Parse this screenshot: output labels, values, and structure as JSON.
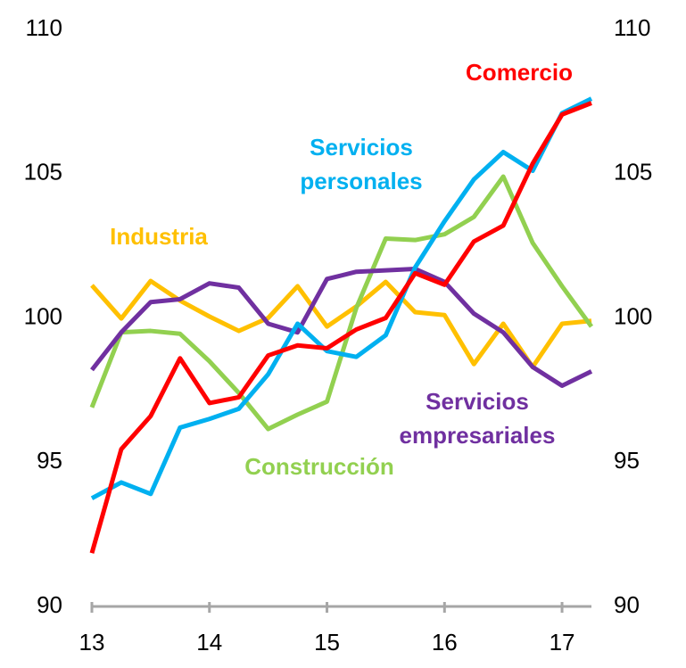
{
  "chart_data": {
    "type": "line",
    "x": [
      13,
      13.25,
      13.5,
      13.75,
      14,
      14.25,
      14.5,
      14.75,
      15,
      15.25,
      15.5,
      15.75,
      16,
      16.25,
      16.5,
      16.75,
      17,
      17.25
    ],
    "xlim": [
      13,
      17.25
    ],
    "xticks": [
      13,
      14,
      15,
      16,
      17
    ],
    "ylim": [
      90,
      110
    ],
    "yticks": [
      90,
      95,
      100,
      105,
      110
    ],
    "y2lim": [
      90,
      110
    ],
    "y2ticks": [
      90,
      95,
      100,
      105,
      110
    ],
    "series": [
      {
        "name": "Industria",
        "color": "#ffc000",
        "values": [
          101.13,
          99.98,
          101.28,
          100.6,
          100.05,
          99.55,
          100.0,
          101.1,
          99.7,
          100.4,
          101.25,
          100.2,
          100.1,
          98.4,
          99.8,
          98.3,
          99.8,
          99.9
        ]
      },
      {
        "name": "Construcción",
        "color": "#92d050",
        "values": [
          96.9,
          99.5,
          99.55,
          99.45,
          98.5,
          97.4,
          96.15,
          96.65,
          97.1,
          100.35,
          102.75,
          102.7,
          102.9,
          103.5,
          104.9,
          102.6,
          101.1,
          99.7
        ]
      },
      {
        "name": "Servicios empresariales",
        "color": "#7030a0",
        "values": [
          98.2,
          99.5,
          100.55,
          100.65,
          101.2,
          101.05,
          99.8,
          99.5,
          101.35,
          101.6,
          101.65,
          101.7,
          101.25,
          100.15,
          99.5,
          98.3,
          97.65,
          98.15
        ]
      },
      {
        "name": "Servicios personales",
        "color": "#00b0f0",
        "values": [
          93.75,
          94.3,
          93.9,
          96.2,
          96.5,
          96.85,
          98.05,
          99.8,
          98.85,
          98.65,
          99.4,
          101.75,
          103.35,
          104.8,
          105.75,
          105.1,
          107.1,
          107.6
        ]
      },
      {
        "name": "Comercio",
        "color": "#ff0000",
        "values": [
          91.85,
          95.45,
          96.6,
          98.6,
          97.05,
          97.25,
          98.7,
          99.05,
          98.95,
          99.6,
          100.0,
          101.55,
          101.15,
          102.65,
          103.2,
          105.35,
          107.05,
          107.45
        ]
      }
    ]
  }
}
